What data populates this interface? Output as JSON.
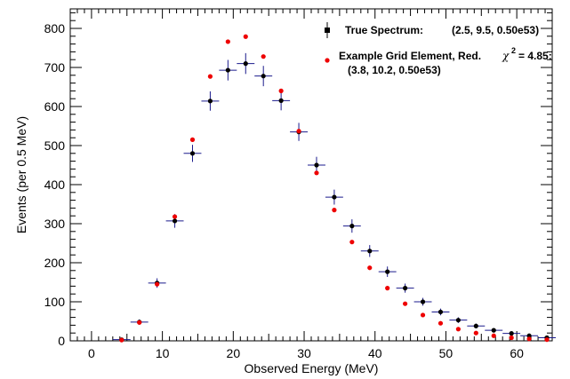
{
  "chart_data": {
    "type": "scatter",
    "xlabel": "Observed Energy (MeV)",
    "ylabel": "Events (per 0.5 MeV)",
    "xlim": [
      -3,
      65
    ],
    "ylim": [
      0,
      850
    ],
    "x_ticks": [
      0,
      10,
      20,
      30,
      40,
      50,
      60
    ],
    "y_ticks": [
      0,
      100,
      200,
      300,
      400,
      500,
      600,
      700,
      800
    ],
    "grid": false,
    "legend_position": "top-right",
    "series": [
      {
        "name": "True Spectrum:",
        "name_params": "(2.5, 9.5, 0.50e53)",
        "color": "#000000",
        "marker": "square-errorbar",
        "x_half_width": 1.25,
        "x": [
          4.25,
          6.75,
          9.25,
          11.75,
          14.25,
          16.75,
          19.25,
          21.75,
          24.25,
          26.75,
          29.25,
          31.75,
          34.25,
          36.75,
          39.25,
          41.75,
          44.25,
          46.75,
          49.25,
          51.75,
          54.25,
          56.75,
          59.25,
          61.75,
          64.25
        ],
        "y": [
          3,
          48,
          148,
          307,
          480,
          614,
          693,
          710,
          678,
          615,
          535,
          450,
          368,
          294,
          230,
          177,
          135,
          100,
          74,
          53,
          38,
          27,
          19,
          13,
          8
        ]
      },
      {
        "name": "Example Grid Element, Red.",
        "name_chi": "χ",
        "name_chi_sup": "2",
        "name_chi_value": "= 4.85:",
        "name_params": "(3.8, 10.2, 0.50e53)",
        "color": "#ee0000",
        "marker": "circle",
        "x": [
          4.25,
          6.75,
          9.25,
          11.75,
          14.25,
          16.75,
          19.25,
          21.75,
          24.25,
          26.75,
          29.25,
          31.75,
          34.25,
          36.75,
          39.25,
          41.75,
          44.25,
          46.75,
          49.25,
          51.75,
          54.25,
          56.75,
          59.25,
          61.75,
          64.25
        ],
        "y": [
          2,
          47,
          145,
          318,
          515,
          677,
          766,
          779,
          728,
          640,
          537,
          430,
          335,
          253,
          187,
          135,
          95,
          66,
          45,
          30,
          20,
          13,
          8,
          5,
          3
        ]
      }
    ]
  }
}
